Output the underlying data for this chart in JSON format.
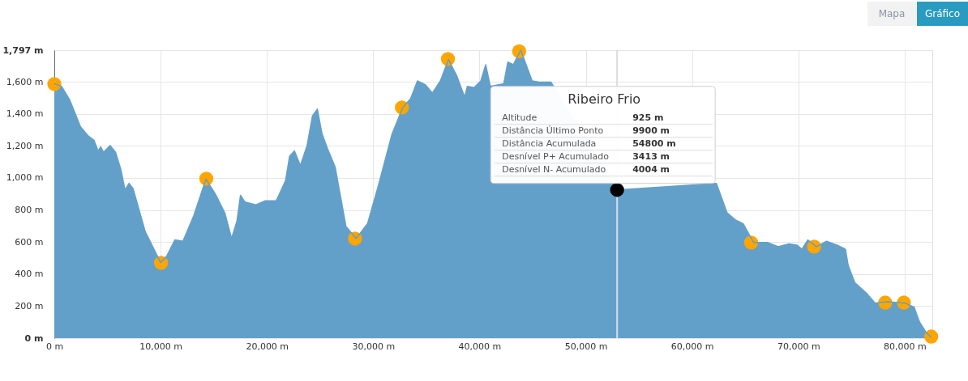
{
  "chart_data": {
    "type": "area",
    "xlim": [
      0,
      82600
    ],
    "ylim": [
      0,
      1797
    ],
    "xticks": [
      {
        "value": 0,
        "label": "0 m"
      },
      {
        "value": 10000,
        "label": "10,000 m"
      },
      {
        "value": 20000,
        "label": "20,000 m"
      },
      {
        "value": 30000,
        "label": "30,000 m"
      },
      {
        "value": 40000,
        "label": "40,000 m"
      },
      {
        "value": 50000,
        "label": "50,000 m"
      },
      {
        "value": 60000,
        "label": "60,000 m"
      },
      {
        "value": 70000,
        "label": "70,000 m"
      },
      {
        "value": 80000,
        "label": "80,000 m"
      }
    ],
    "yticks": [
      {
        "value": 0,
        "label": "0 m"
      },
      {
        "value": 200,
        "label": "200 m"
      },
      {
        "value": 400,
        "label": "400 m"
      },
      {
        "value": 600,
        "label": "600 m"
      },
      {
        "value": 800,
        "label": "800 m"
      },
      {
        "value": 1000,
        "label": "1,000 m"
      },
      {
        "value": 1200,
        "label": "1,200 m"
      },
      {
        "value": 1400,
        "label": "1,400 m"
      },
      {
        "value": 1600,
        "label": "1,600 m"
      },
      {
        "value": 1797,
        "label": "1,797 m"
      }
    ],
    "grid": true,
    "series": [
      {
        "type": "area",
        "color": "#62a0ca",
        "x": [
          0,
          685,
          1447,
          2462,
          3223,
          3731,
          4112,
          4365,
          4619,
          5254,
          5761,
          6269,
          6650,
          7030,
          7411,
          8553,
          10000,
          10584,
          11345,
          12107,
          13122,
          14264,
          15152,
          16041,
          16675,
          17183,
          17513,
          17944,
          18959,
          19848,
          20863,
          21117,
          21751,
          22132,
          22589,
          23147,
          23782,
          24289,
          24746,
          25178,
          25685,
          26421,
          27437,
          28401,
          29467,
          30482,
          31751,
          32766,
          33528,
          34162,
          34924,
          35558,
          36320,
          37081,
          37843,
          38604,
          38858,
          39492,
          40127,
          40584,
          41015,
          42284,
          42665,
          43173,
          43883,
          44949,
          45711,
          46726,
          52944,
          62278,
          63291,
          64051,
          64810,
          65772,
          67089,
          68101,
          69114,
          69873,
          70329,
          70886,
          71696,
          72658,
          73671,
          74430,
          74684,
          75316,
          76456,
          77215,
          78354,
          80076,
          80886,
          81392,
          82025,
          82500
        ],
        "values": [
          1588,
          1571,
          1487,
          1319,
          1260,
          1235,
          1168,
          1193,
          1160,
          1202,
          1160,
          1050,
          924,
          966,
          933,
          664,
          471,
          513,
          613,
          605,
          765,
          992,
          899,
          781,
          622,
          731,
          891,
          849,
          832,
          857,
          857,
          891,
          983,
          1134,
          1168,
          1076,
          1202,
          1387,
          1429,
          1277,
          1185,
          1067,
          697,
          622,
          714,
          950,
          1269,
          1437,
          1496,
          1605,
          1580,
          1529,
          1605,
          1739,
          1639,
          1504,
          1571,
          1563,
          1605,
          1706,
          1571,
          1588,
          1723,
          1706,
          1797,
          1605,
          1597,
          1597,
          925,
          966,
          782,
          739,
          714,
          597,
          597,
          571,
          588,
          580,
          555,
          613,
          571,
          605,
          580,
          555,
          454,
          345,
          277,
          218,
          227,
          218,
          193,
          101,
          34,
          5
        ]
      },
      {
        "type": "scatter",
        "color": "#ffa500",
        "marker": "circle",
        "x": [
          0,
          10040,
          14300,
          28290,
          32700,
          37030,
          43730,
          65550,
          71480,
          78170,
          79920,
          82500
        ],
        "values": [
          1586,
          470,
          995,
          621,
          1439,
          1742,
          1790,
          596,
          571,
          222,
          222,
          10
        ]
      },
      {
        "type": "scatter",
        "color": "#000000",
        "marker": "circle",
        "x": [
          52944
        ],
        "values": [
          925
        ]
      }
    ],
    "ref_lines": [
      {
        "axis": "x",
        "value": 52944,
        "color": "#d8dde3"
      }
    ],
    "annotations": [
      "Ribeiro Frio",
      "Altitude",
      "925 m",
      "Distância Último Ponto",
      "9900 m",
      "Distância Acumulada",
      "54800 m",
      "Desnível P+ Acumulado",
      "3413 m",
      "Desnível N- Acumulado",
      "4004 m",
      "Mapa",
      "Gráfico"
    ]
  }
}
